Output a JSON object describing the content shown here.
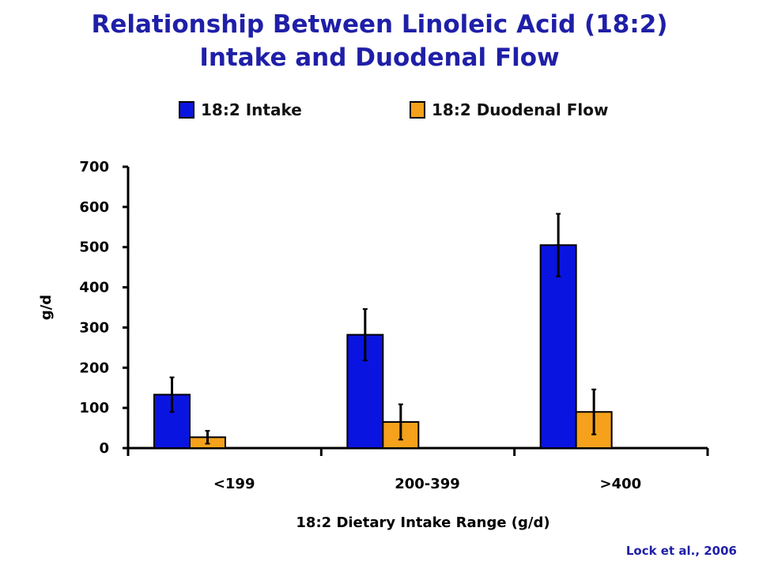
{
  "title": {
    "line1": "Relationship Between Linoleic Acid (18:2)",
    "line2": "Intake and Duodenal Flow"
  },
  "citation": "Lock et al., 2006",
  "colors": {
    "title": "#1f1fa8",
    "intake": "#0a14e0",
    "flow": "#f5a11c"
  },
  "chart_data": {
    "type": "bar",
    "categories": [
      "<199",
      "200-399",
      ">400"
    ],
    "series": [
      {
        "name": "18:2 Intake",
        "values": [
          133,
          282,
          505
        ],
        "error": [
          43,
          64,
          78
        ],
        "color": "#0a14e0"
      },
      {
        "name": "18:2 Duodenal Flow",
        "values": [
          27,
          65,
          90
        ],
        "error": [
          16,
          44,
          56
        ],
        "color": "#f5a11c"
      }
    ],
    "xlabel": "18:2 Dietary Intake Range (g/d)",
    "ylabel": "g/d",
    "ylim": [
      0,
      700
    ],
    "yticks": [
      0,
      100,
      200,
      300,
      400,
      500,
      600,
      700
    ],
    "grid": false,
    "legend_position": "top"
  }
}
